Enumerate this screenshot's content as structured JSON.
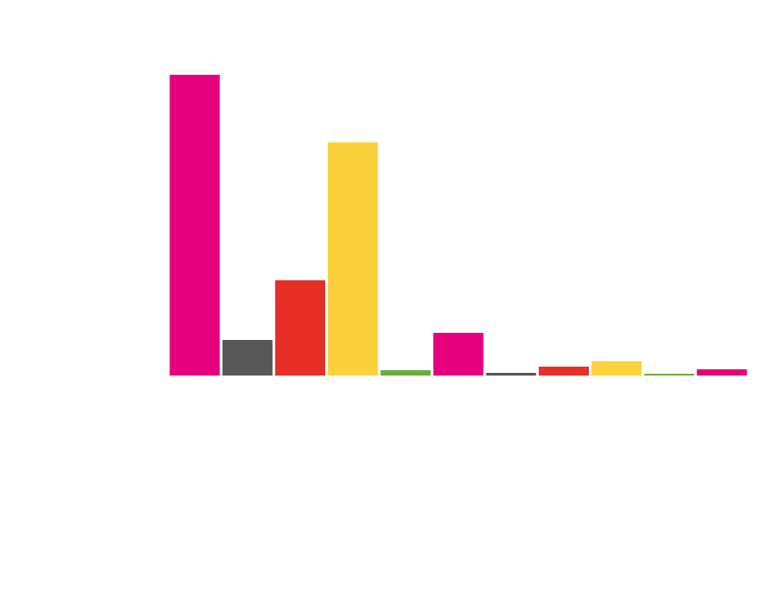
{
  "chart_data": {
    "type": "bar",
    "categories": [
      null,
      null,
      null,
      null,
      null,
      null,
      null,
      null,
      null,
      null,
      null
    ],
    "values": [
      338,
      40,
      107,
      262,
      6,
      48,
      3,
      10,
      16,
      2,
      7
    ],
    "colors": [
      "#e6007e",
      "#575757",
      "#e52f27",
      "#fdd13a",
      "#6aaf3d",
      "#e6007e",
      "#575757",
      "#e52f27",
      "#fdd13a",
      "#6aaf3d",
      "#e6007e"
    ],
    "ylim": [
      0,
      338
    ]
  }
}
